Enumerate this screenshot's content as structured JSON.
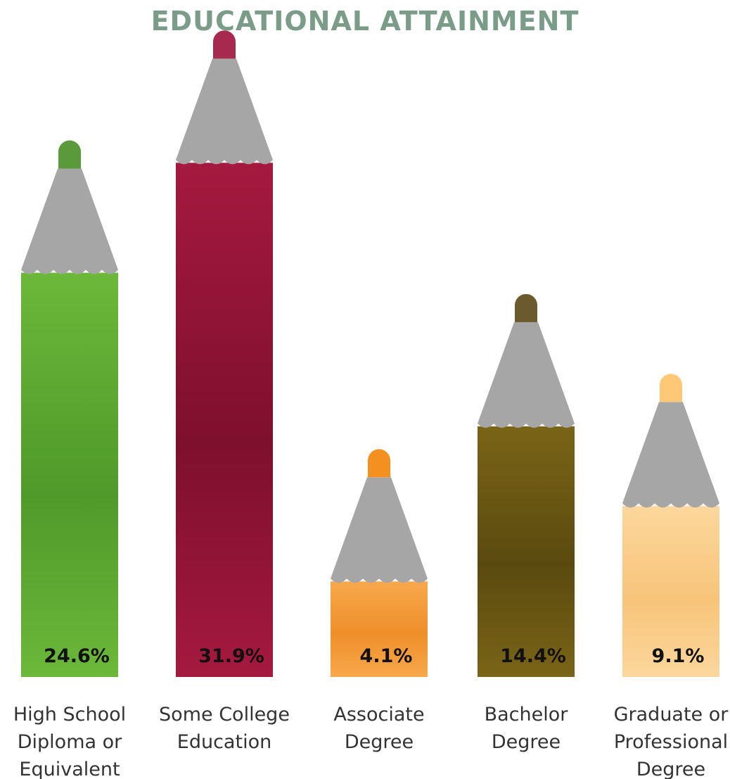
{
  "title": "EDUCATIONAL ATTAINMENT",
  "chart_data": {
    "type": "bar",
    "title": "EDUCATIONAL ATTAINMENT",
    "categories": [
      "High School Diploma or Equivalent",
      "Some College Education",
      "Associate Degree",
      "Bachelor Degree",
      "Graduate or Professional Degree"
    ],
    "category_labels": [
      "High School\nDiploma or\nEquivalent",
      "Some College\nEducation",
      "Associate\nDegree",
      "Bachelor\nDegree",
      "Graduate or\nProfessional\nDegree"
    ],
    "values": [
      24.6,
      31.9,
      4.1,
      14.4,
      9.1
    ],
    "value_labels": [
      "24.6%",
      "31.9%",
      "4.1%",
      "14.4%",
      "9.1%"
    ],
    "unit": "%",
    "colors": {
      "body": [
        "#6cb83a",
        "#a5193f",
        "#f7a84c",
        "#7a6417",
        "#fcd79c"
      ],
      "body_dark": [
        "#4f9a2a",
        "#7e0f2d",
        "#ef8f2a",
        "#5a4a0f",
        "#f8c47a"
      ],
      "cap": [
        "#5a9a3a",
        "#a8294f",
        "#f39020",
        "#6b5a2e",
        "#fec877"
      ],
      "wood": "#a6a6a6",
      "title": "#7a9c88"
    }
  }
}
